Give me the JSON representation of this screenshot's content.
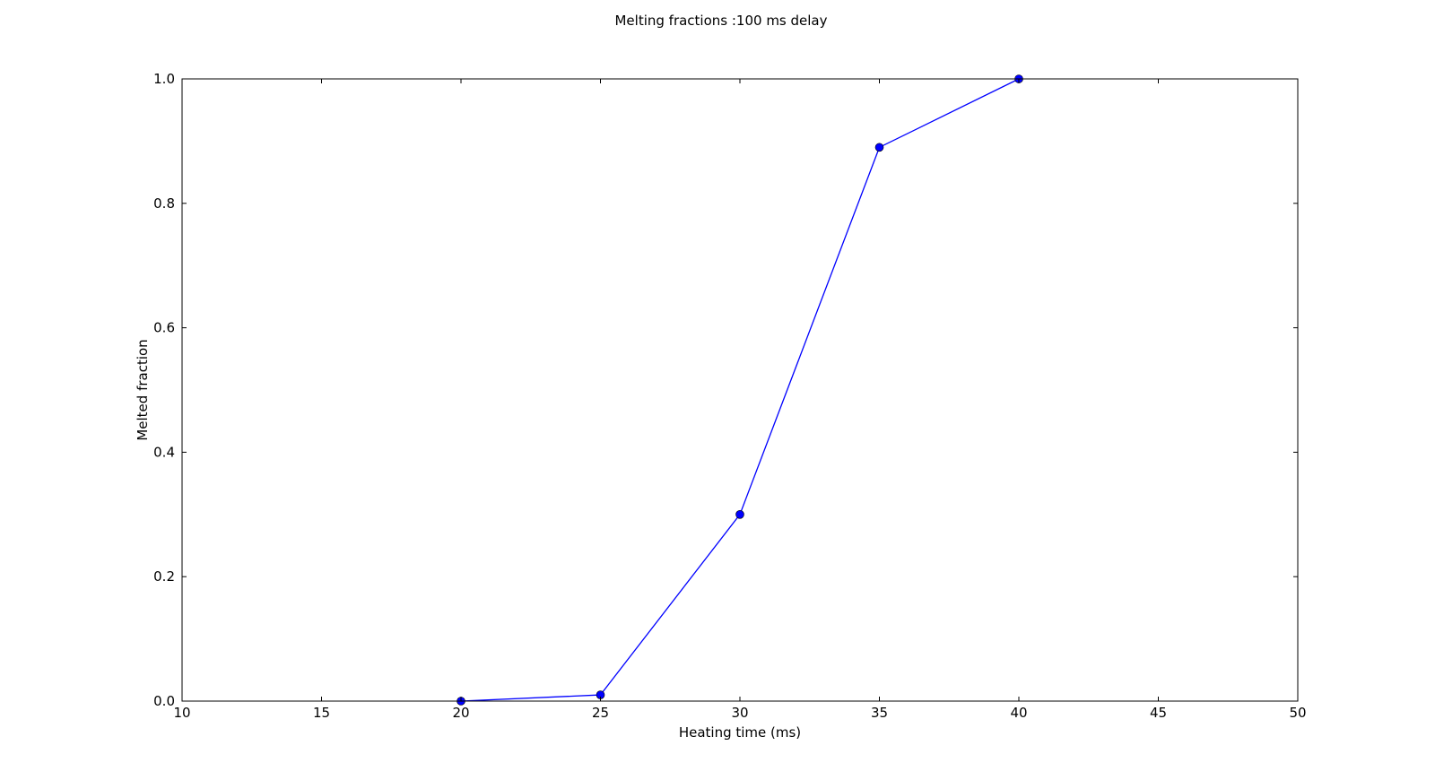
{
  "chart_data": {
    "type": "line",
    "title": "Melting fractions :100 ms delay",
    "xlabel": "Heating time (ms)",
    "ylabel": "Melted fraction",
    "xlim": [
      10,
      50
    ],
    "ylim": [
      0.0,
      1.0
    ],
    "xticks": [
      "10",
      "15",
      "20",
      "25",
      "30",
      "35",
      "40",
      "45",
      "50"
    ],
    "yticks": [
      "0.0",
      "0.2",
      "0.4",
      "0.6",
      "0.8",
      "1.0"
    ],
    "grid": false,
    "legend": "none",
    "series": [
      {
        "color": "#0000ff",
        "marker": "circle",
        "x": [
          20,
          25,
          30,
          35,
          40
        ],
        "y": [
          0.0,
          0.01,
          0.3,
          0.89,
          1.0
        ]
      }
    ]
  }
}
